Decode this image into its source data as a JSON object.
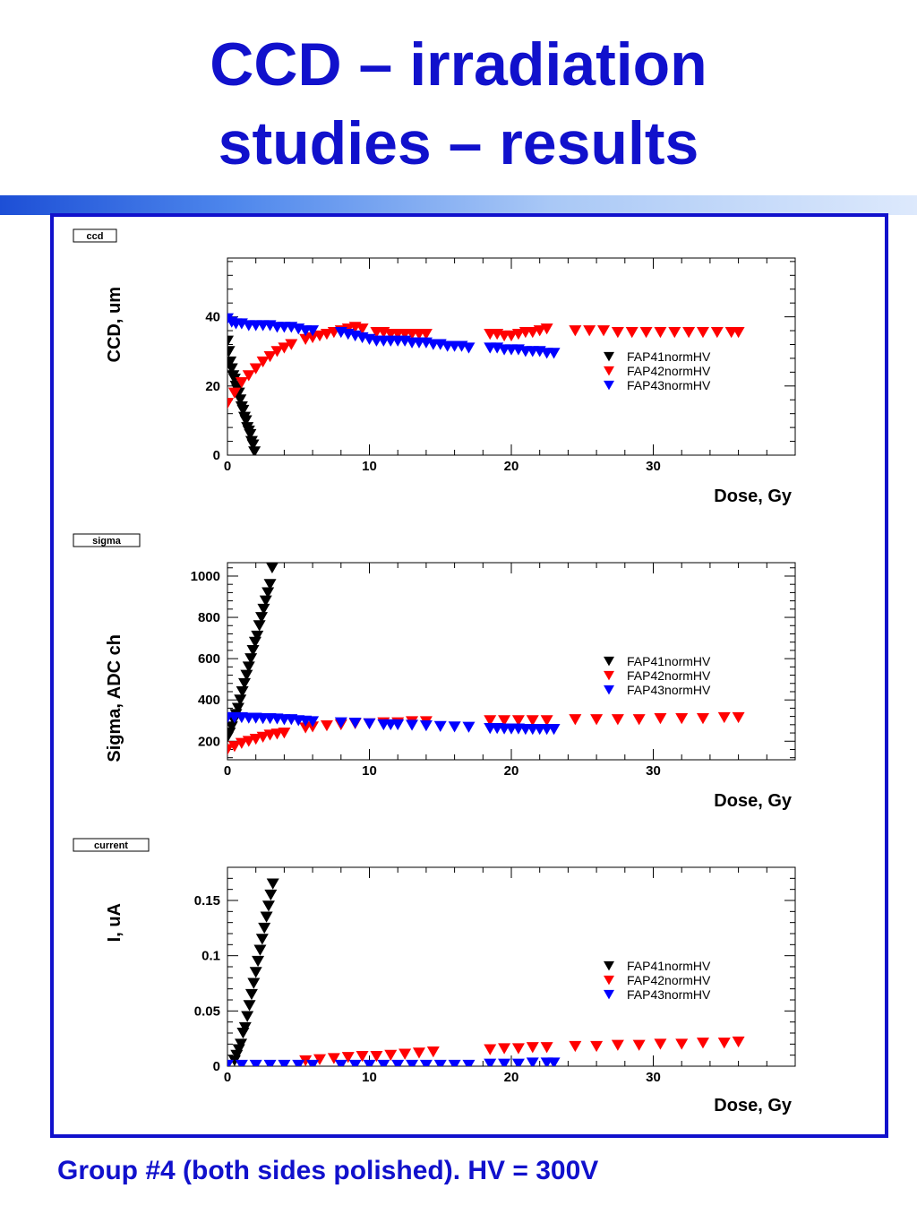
{
  "slide": {
    "title_line1": "CCD – irradiation",
    "title_line2": "studies – results",
    "caption": "Group #4 (both sides polished). HV = 300V"
  },
  "colors": {
    "title": "#1111cc",
    "frame": "#1111cc",
    "FAP41normHV": "#000000",
    "FAP42normHV": "#ff0000",
    "FAP43normHV": "#0000ff"
  },
  "chart_data": [
    {
      "type": "scatter",
      "tag": "ccd",
      "ylabel": "CCD, um",
      "xlabel": "Dose, Gy",
      "xlim": [
        0,
        40
      ],
      "ylim": [
        0,
        57
      ],
      "xticks": [
        0,
        10,
        20,
        30
      ],
      "yticks": [
        0,
        20,
        40
      ],
      "ytick_labels": [
        "0",
        "20",
        "40"
      ],
      "legend_position": "right",
      "series": [
        {
          "name": "FAP41normHV",
          "color": "#000000",
          "x": [
            0,
            0.1,
            0.2,
            0.3,
            0.4,
            0.5,
            0.6,
            0.7,
            0.8,
            0.9,
            1.0,
            1.1,
            1.2,
            1.3,
            1.4,
            1.5,
            1.6,
            1.7,
            1.8,
            1.9
          ],
          "y": [
            33,
            30,
            27,
            25,
            23,
            22,
            20,
            19,
            18,
            16,
            14,
            13,
            11,
            10,
            8,
            7,
            6,
            4,
            3,
            1
          ]
        },
        {
          "name": "FAP42normHV",
          "color": "#ff0000",
          "x": [
            0,
            0.5,
            1,
            1.5,
            2,
            2.5,
            3,
            3.5,
            4,
            4.5,
            5.5,
            6,
            6.5,
            7,
            7.5,
            8,
            8.5,
            9,
            9.5,
            10.5,
            11,
            11.5,
            12,
            12.5,
            13,
            13.5,
            14,
            18.5,
            19,
            19.5,
            20,
            20.5,
            21,
            21.5,
            22,
            22.5,
            24.5,
            25.5,
            26.5,
            27.5,
            28.5,
            29.5,
            30.5,
            31.5,
            32.5,
            33.5,
            34.5,
            35.5,
            36
          ],
          "y": [
            15,
            18,
            21,
            23,
            25,
            27,
            28.5,
            30,
            31,
            32,
            33.5,
            34,
            34.5,
            35,
            35.5,
            36,
            36.5,
            37,
            36.5,
            35.5,
            35.5,
            35,
            35,
            35,
            35,
            35,
            35,
            35,
            35,
            34.5,
            34.5,
            35,
            35.5,
            35.5,
            36,
            36.5,
            36,
            36,
            36,
            35.5,
            35.5,
            35.5,
            35.5,
            35.5,
            35.5,
            35.5,
            35.5,
            35.5,
            35.5
          ]
        },
        {
          "name": "FAP43normHV",
          "color": "#0000ff",
          "x": [
            0,
            0.3,
            0.6,
            1,
            1.5,
            2,
            2.5,
            3,
            3.5,
            4,
            4.5,
            5,
            5.5,
            6,
            8,
            8.5,
            9,
            9.5,
            10,
            10.5,
            11,
            11.5,
            12,
            12.5,
            13,
            13.5,
            14,
            14.5,
            15,
            15.5,
            16,
            16.5,
            17,
            18.5,
            19,
            19.5,
            20,
            20.5,
            21,
            21.5,
            22,
            22.5,
            23
          ],
          "y": [
            39.5,
            38.5,
            38,
            38,
            37.5,
            37.5,
            37.5,
            37.5,
            37,
            37,
            37,
            36.5,
            36,
            36,
            35.5,
            35,
            34.5,
            34,
            33.5,
            33,
            33,
            33,
            33,
            33,
            32.5,
            32.5,
            32.5,
            32,
            32,
            31.5,
            31.5,
            31.5,
            31,
            31,
            31,
            30.5,
            30.5,
            30.5,
            30,
            30,
            30,
            29.5,
            29.5
          ]
        }
      ]
    },
    {
      "type": "scatter",
      "tag": "sigma",
      "ylabel": "Sigma, ADC ch",
      "xlabel": "Dose, Gy",
      "xlim": [
        0,
        40
      ],
      "ylim": [
        110,
        1065
      ],
      "xticks": [
        0,
        10,
        20,
        30
      ],
      "yticks": [
        200,
        400,
        600,
        800,
        1000
      ],
      "ytick_labels": [
        "200",
        "400",
        "600",
        "800",
        "1000"
      ],
      "legend_position": "right",
      "series": [
        {
          "name": "FAP41normHV",
          "color": "#000000",
          "x": [
            0,
            0.15,
            0.3,
            0.45,
            0.6,
            0.75,
            0.9,
            1.05,
            1.2,
            1.35,
            1.5,
            1.65,
            1.8,
            1.95,
            2.1,
            2.25,
            2.4,
            2.55,
            2.7,
            2.85,
            3.0,
            3.15
          ],
          "y": [
            220,
            240,
            270,
            300,
            330,
            360,
            400,
            440,
            480,
            520,
            560,
            600,
            640,
            680,
            710,
            760,
            800,
            840,
            880,
            920,
            960,
            1040
          ]
        },
        {
          "name": "FAP42normHV",
          "color": "#ff0000",
          "x": [
            0,
            0.5,
            1,
            1.5,
            2,
            2.5,
            3,
            3.5,
            4,
            5.5,
            6,
            7,
            8,
            9,
            10,
            11,
            12,
            13,
            14,
            18.5,
            19.5,
            20.5,
            21.5,
            22.5,
            24.5,
            26,
            27.5,
            29,
            30.5,
            32,
            33.5,
            35,
            36
          ],
          "y": [
            160,
            175,
            190,
            200,
            210,
            220,
            230,
            235,
            240,
            265,
            270,
            275,
            280,
            285,
            285,
            290,
            290,
            295,
            295,
            300,
            300,
            300,
            300,
            300,
            305,
            305,
            305,
            305,
            310,
            310,
            310,
            315,
            315
          ]
        },
        {
          "name": "FAP43normHV",
          "color": "#0000ff",
          "x": [
            0,
            0.5,
            1,
            1.5,
            2,
            2.5,
            3,
            3.5,
            4,
            4.5,
            5,
            5.5,
            6,
            8,
            9,
            10,
            11,
            11.5,
            12,
            13,
            14,
            15,
            16,
            17,
            18.5,
            19,
            19.5,
            20,
            20.5,
            21,
            21.5,
            22,
            22.5,
            23
          ],
          "y": [
            315,
            315,
            315,
            312,
            312,
            310,
            310,
            308,
            305,
            305,
            300,
            298,
            295,
            290,
            288,
            285,
            280,
            280,
            280,
            278,
            275,
            272,
            270,
            268,
            262,
            262,
            260,
            260,
            260,
            258,
            258,
            258,
            258,
            258
          ]
        }
      ]
    },
    {
      "type": "scatter",
      "tag": "current",
      "ylabel": "I, uA",
      "xlabel": "Dose, Gy",
      "xlim": [
        0,
        40
      ],
      "ylim": [
        0,
        0.18
      ],
      "xticks": [
        0,
        10,
        20,
        30
      ],
      "yticks": [
        0,
        0.05,
        0.1,
        0.15
      ],
      "ytick_labels": [
        "0",
        "0.05",
        "0.1",
        "0.15"
      ],
      "legend_position": "right",
      "series": [
        {
          "name": "FAP41normHV",
          "color": "#000000",
          "x": [
            0.5,
            0.65,
            0.8,
            0.95,
            1.1,
            1.25,
            1.4,
            1.55,
            1.7,
            1.85,
            2.0,
            2.15,
            2.3,
            2.45,
            2.6,
            2.75,
            2.9,
            3.05,
            3.2
          ],
          "y": [
            0.005,
            0.01,
            0.015,
            0.02,
            0.03,
            0.035,
            0.045,
            0.055,
            0.065,
            0.075,
            0.085,
            0.095,
            0.105,
            0.115,
            0.125,
            0.135,
            0.145,
            0.155,
            0.165
          ]
        },
        {
          "name": "FAP42normHV",
          "color": "#ff0000",
          "x": [
            5.5,
            6.5,
            7.5,
            8.5,
            9.5,
            10.5,
            11.5,
            12.5,
            13.5,
            14.5,
            18.5,
            19.5,
            20.5,
            21.5,
            22.5,
            24.5,
            26,
            27.5,
            29,
            30.5,
            32,
            33.5,
            35,
            36
          ],
          "y": [
            0.005,
            0.006,
            0.007,
            0.008,
            0.009,
            0.009,
            0.01,
            0.011,
            0.012,
            0.013,
            0.015,
            0.016,
            0.016,
            0.017,
            0.017,
            0.018,
            0.018,
            0.019,
            0.019,
            0.02,
            0.02,
            0.021,
            0.021,
            0.022
          ]
        },
        {
          "name": "FAP43normHV",
          "color": "#0000ff",
          "x": [
            0,
            1,
            2,
            3,
            4,
            5,
            6,
            8,
            9,
            10,
            11,
            12,
            13,
            14,
            15,
            16,
            17,
            18.5,
            19.5,
            20.5,
            21.5,
            22.5,
            23
          ],
          "y": [
            0.001,
            0.001,
            0.001,
            0.001,
            0.001,
            0.001,
            0.001,
            0.001,
            0.001,
            0.001,
            0.001,
            0.001,
            0.001,
            0.001,
            0.001,
            0.001,
            0.001,
            0.002,
            0.002,
            0.002,
            0.003,
            0.003,
            0.003
          ]
        }
      ]
    }
  ]
}
